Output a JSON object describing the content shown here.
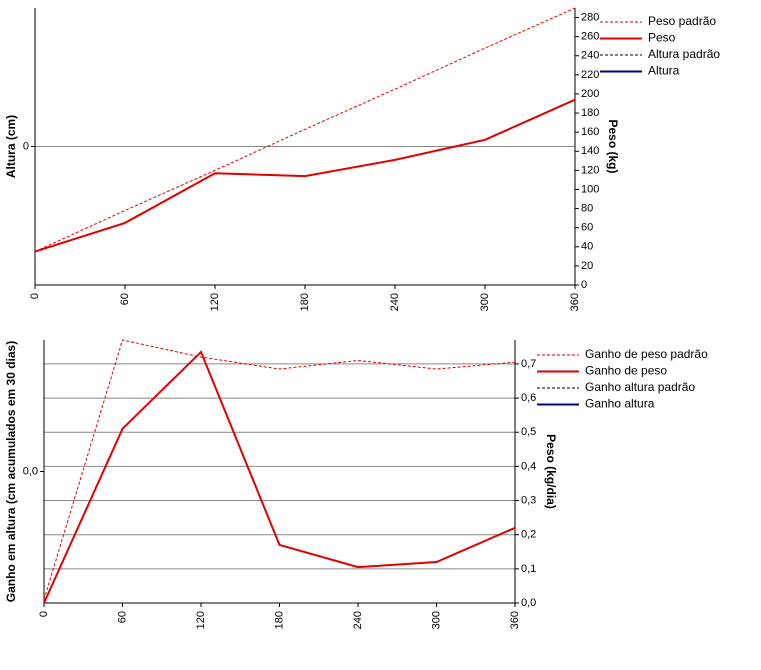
{
  "chart_data": [
    {
      "type": "line",
      "ylabel": "Altura (cm)",
      "y2label": "Peso (kg)",
      "x": [
        0,
        60,
        120,
        180,
        240,
        300,
        360
      ],
      "xlim": [
        0,
        360
      ],
      "xticks": [
        0,
        60,
        120,
        180,
        240,
        300,
        360
      ],
      "ylim": [
        -1,
        1
      ],
      "yticks": [
        0
      ],
      "y2lim": [
        0,
        290
      ],
      "y2ticks": [
        0,
        20,
        40,
        60,
        80,
        100,
        120,
        140,
        160,
        180,
        200,
        220,
        240,
        260,
        280
      ],
      "grid": "y",
      "legend": "right",
      "series": [
        {
          "name": "Peso padrão",
          "color": "#e00000",
          "style": "dashed",
          "axis": "y2",
          "values": [
            35,
            78,
            120,
            163,
            205,
            248,
            290
          ]
        },
        {
          "name": "Peso",
          "color": "#e00000",
          "style": "solid",
          "axis": "y2",
          "values": [
            35,
            65,
            117,
            114,
            131,
            152,
            194
          ]
        },
        {
          "name": "Altura padrão",
          "color": "#000000",
          "style": "dashed",
          "axis": "y",
          "values": [
            null,
            null,
            null,
            null,
            null,
            null,
            null
          ]
        },
        {
          "name": "Altura",
          "color": "#000080",
          "style": "solid",
          "axis": "y",
          "values": [
            null,
            null,
            null,
            null,
            null,
            null,
            null
          ]
        }
      ]
    },
    {
      "type": "line",
      "ylabel": "Ganho em altura (cm acumulados em 30 dias)",
      "y2label": "Peso (kg/dia)",
      "x": [
        0,
        60,
        120,
        180,
        240,
        300,
        360
      ],
      "xlim": [
        0,
        360
      ],
      "xticks": [
        0,
        60,
        120,
        180,
        240,
        300,
        360
      ],
      "ylim": [
        -1,
        1
      ],
      "yticks": [
        {
          "value": 0,
          "label": "0,0"
        }
      ],
      "y2lim": [
        0,
        0.77
      ],
      "y2ticks": [
        {
          "value": 0,
          "label": "0,0"
        },
        {
          "value": 0.1,
          "label": "0,1"
        },
        {
          "value": 0.2,
          "label": "0,2"
        },
        {
          "value": 0.3,
          "label": "0,3"
        },
        {
          "value": 0.4,
          "label": "0,4"
        },
        {
          "value": 0.5,
          "label": "0,5"
        },
        {
          "value": 0.6,
          "label": "0,6"
        },
        {
          "value": 0.7,
          "label": "0,7"
        }
      ],
      "grid": "y2",
      "legend": "right",
      "series": [
        {
          "name": "Ganho de peso padrão",
          "color": "#e00000",
          "style": "dashed",
          "axis": "y2",
          "values": [
            0.01,
            0.77,
            0.72,
            0.685,
            0.71,
            0.685,
            0.705
          ]
        },
        {
          "name": "Ganho de peso",
          "color": "#e00000",
          "style": "solid",
          "axis": "y2",
          "values": [
            0,
            0.51,
            0.735,
            0.17,
            0.105,
            0.12,
            0.22
          ]
        },
        {
          "name": "Ganho altura padrão",
          "color": "#000000",
          "style": "dashed",
          "axis": "y",
          "values": [
            null,
            null,
            null,
            null,
            null,
            null,
            null
          ]
        },
        {
          "name": "Ganho altura",
          "color": "#000080",
          "style": "solid",
          "axis": "y",
          "values": [
            null,
            null,
            null,
            null,
            null,
            null,
            null
          ]
        }
      ]
    }
  ]
}
